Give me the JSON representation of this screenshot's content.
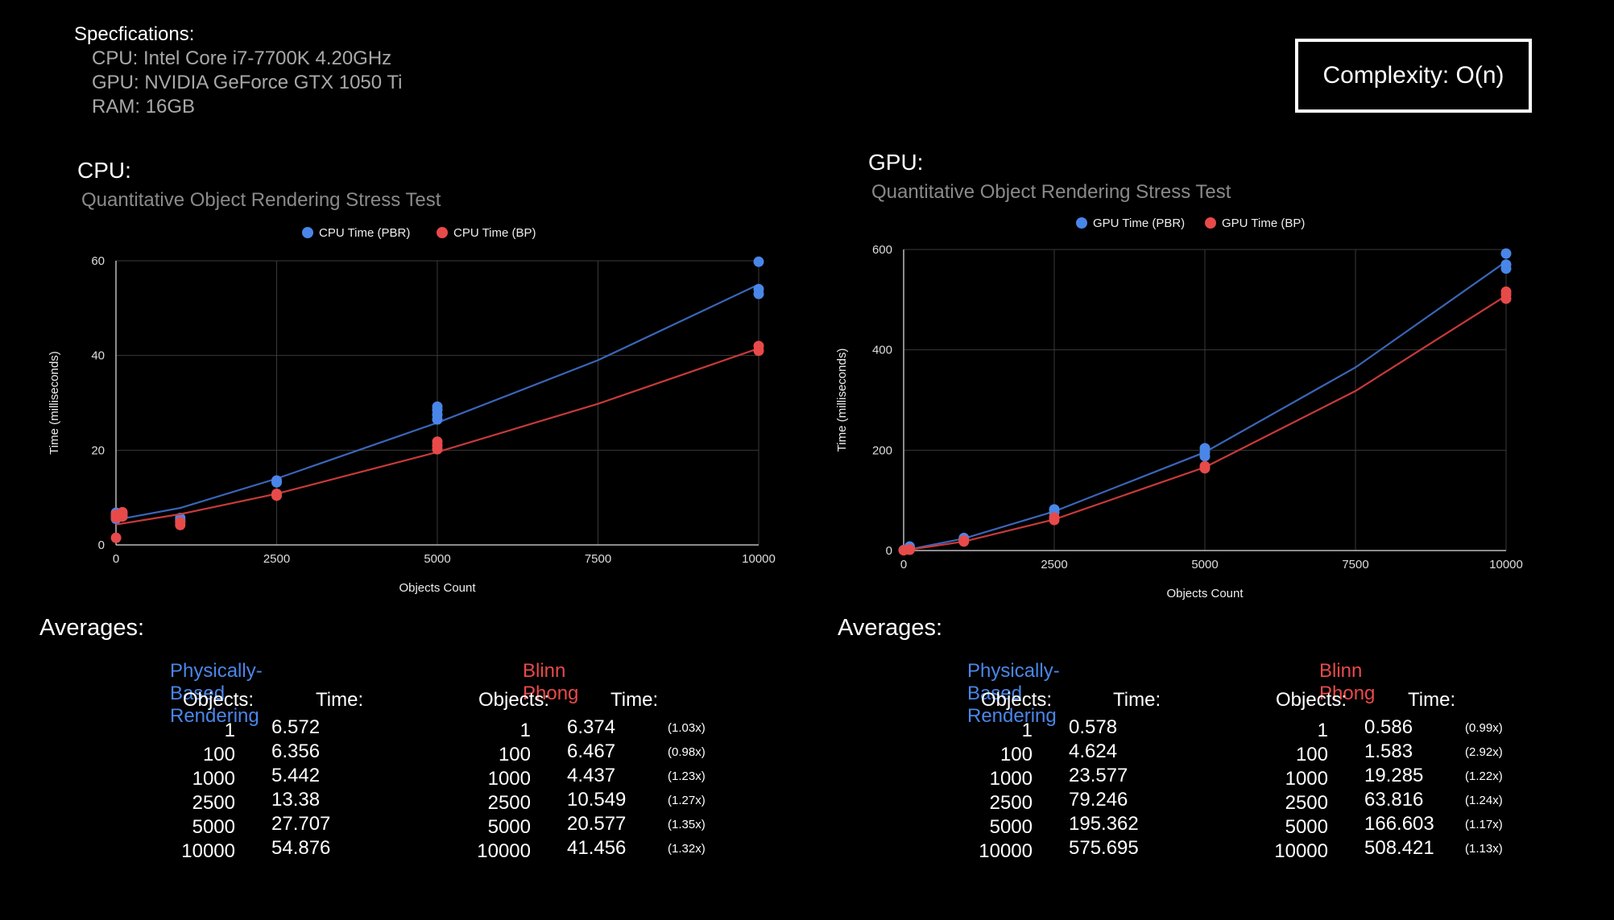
{
  "specs": {
    "heading": "Specfications:",
    "cpu": "CPU: Intel Core i7-7700K 4.20GHz",
    "gpu": "GPU: NVIDIA GeForce GTX 1050 Ti",
    "ram": "RAM: 16GB"
  },
  "complexity": "Complexity: O(n)",
  "colors": {
    "pbr": "#4a86e8",
    "bp": "#e84a4a",
    "pbr_line": "#3a66b8",
    "bp_line": "#c83a3a"
  },
  "cpu_panel": {
    "label": "CPU:",
    "averages_label": "Averages:"
  },
  "gpu_panel": {
    "label": "GPU:",
    "averages_label": "Averages:"
  },
  "chart_data": [
    {
      "type": "scatter",
      "title": "Quantitative Object Rendering Stress Test",
      "xlabel": "Objects Count",
      "ylabel": "Time (milliseconds)",
      "xlim": [
        0,
        10000
      ],
      "ylim": [
        0,
        60
      ],
      "xticks": [
        "0",
        "2500",
        "5000",
        "7500",
        "10000"
      ],
      "yticks": [
        "0",
        "20",
        "40",
        "60"
      ],
      "grid": true,
      "legend_position": "top",
      "series": [
        {
          "name": "CPU Time (PBR)",
          "points": [
            [
              1,
              5.5
            ],
            [
              1,
              6.2
            ],
            [
              1,
              6.8
            ],
            [
              100,
              6.0
            ],
            [
              100,
              6.5
            ],
            [
              1000,
              5.2
            ],
            [
              1000,
              5.7
            ],
            [
              2500,
              13.2
            ],
            [
              2500,
              13.6
            ],
            [
              5000,
              26.5
            ],
            [
              5000,
              27.5
            ],
            [
              5000,
              28.5
            ],
            [
              5000,
              29.2
            ],
            [
              10000,
              53.0
            ],
            [
              10000,
              54.0
            ],
            [
              10000,
              59.8
            ]
          ],
          "trend": [
            [
              0,
              5.3
            ],
            [
              1000,
              7.8
            ],
            [
              2500,
              14.0
            ],
            [
              5000,
              25.8
            ],
            [
              7500,
              39.0
            ],
            [
              10000,
              55.0
            ]
          ]
        },
        {
          "name": "CPU Time (BP)",
          "points": [
            [
              1,
              1.5
            ],
            [
              1,
              5.8
            ],
            [
              1,
              6.4
            ],
            [
              100,
              6.0
            ],
            [
              100,
              6.9
            ],
            [
              1000,
              4.2
            ],
            [
              1000,
              4.8
            ],
            [
              2500,
              10.4
            ],
            [
              2500,
              10.8
            ],
            [
              5000,
              20.2
            ],
            [
              5000,
              21.0
            ],
            [
              5000,
              21.8
            ],
            [
              10000,
              41.0
            ],
            [
              10000,
              42.0
            ]
          ],
          "trend": [
            [
              0,
              4.3
            ],
            [
              1000,
              6.5
            ],
            [
              2500,
              10.8
            ],
            [
              5000,
              19.6
            ],
            [
              7500,
              29.8
            ],
            [
              10000,
              41.5
            ]
          ]
        }
      ]
    },
    {
      "type": "scatter",
      "title": "Quantitative Object Rendering Stress Test",
      "xlabel": "Objects Count",
      "ylabel": "Time (milliseconds)",
      "xlim": [
        0,
        10000
      ],
      "ylim": [
        0,
        600
      ],
      "xticks": [
        "0",
        "2500",
        "5000",
        "7500",
        "10000"
      ],
      "yticks": [
        "0",
        "200",
        "400",
        "600"
      ],
      "grid": true,
      "legend_position": "top",
      "series": [
        {
          "name": "GPU Time (PBR)",
          "points": [
            [
              1,
              1
            ],
            [
              100,
              5
            ],
            [
              100,
              8
            ],
            [
              1000,
              23
            ],
            [
              1000,
              25
            ],
            [
              2500,
              76
            ],
            [
              2500,
              82
            ],
            [
              5000,
              188
            ],
            [
              5000,
              196
            ],
            [
              5000,
              204
            ],
            [
              10000,
              562
            ],
            [
              10000,
              570
            ],
            [
              10000,
              592
            ]
          ],
          "trend": [
            [
              0,
              0
            ],
            [
              1000,
              24
            ],
            [
              2500,
              78
            ],
            [
              5000,
              196
            ],
            [
              7500,
              365
            ],
            [
              10000,
              576
            ]
          ]
        },
        {
          "name": "GPU Time (BP)",
          "points": [
            [
              1,
              0.5
            ],
            [
              100,
              1.6
            ],
            [
              100,
              2.5
            ],
            [
              1000,
              18
            ],
            [
              1000,
              20
            ],
            [
              2500,
              61
            ],
            [
              2500,
              66
            ],
            [
              5000,
              164
            ],
            [
              5000,
              168
            ],
            [
              10000,
              502
            ],
            [
              10000,
              510
            ],
            [
              10000,
              516
            ]
          ],
          "trend": [
            [
              0,
              0
            ],
            [
              1000,
              18
            ],
            [
              2500,
              62
            ],
            [
              5000,
              166
            ],
            [
              7500,
              318
            ],
            [
              10000,
              508
            ]
          ]
        }
      ]
    }
  ],
  "averages": {
    "cpu": {
      "pbr_heading": "Physically-Based Rendering",
      "bp_heading": "Blinn Phong",
      "objects_col": "Objects:",
      "time_col": "Time:",
      "pbr_rows": [
        {
          "objects": "1",
          "time": "6.572"
        },
        {
          "objects": "100",
          "time": "6.356"
        },
        {
          "objects": "1000",
          "time": "5.442"
        },
        {
          "objects": "2500",
          "time": "13.38"
        },
        {
          "objects": "5000",
          "time": "27.707"
        },
        {
          "objects": "10000",
          "time": "54.876"
        }
      ],
      "bp_rows": [
        {
          "objects": "1",
          "time": "6.374",
          "ratio": "(1.03x)"
        },
        {
          "objects": "100",
          "time": "6.467",
          "ratio": "(0.98x)"
        },
        {
          "objects": "1000",
          "time": "4.437",
          "ratio": "(1.23x)"
        },
        {
          "objects": "2500",
          "time": "10.549",
          "ratio": "(1.27x)"
        },
        {
          "objects": "5000",
          "time": "20.577",
          "ratio": "(1.35x)"
        },
        {
          "objects": "10000",
          "time": "41.456",
          "ratio": "(1.32x)"
        }
      ]
    },
    "gpu": {
      "pbr_heading": "Physically-Based Rendering",
      "bp_heading": "Blinn Phong",
      "objects_col": "Objects:",
      "time_col": "Time:",
      "pbr_rows": [
        {
          "objects": "1",
          "time": "0.578"
        },
        {
          "objects": "100",
          "time": "4.624"
        },
        {
          "objects": "1000",
          "time": "23.577"
        },
        {
          "objects": "2500",
          "time": "79.246"
        },
        {
          "objects": "5000",
          "time": "195.362"
        },
        {
          "objects": "10000",
          "time": "575.695"
        }
      ],
      "bp_rows": [
        {
          "objects": "1",
          "time": "0.586",
          "ratio": "(0.99x)"
        },
        {
          "objects": "100",
          "time": "1.583",
          "ratio": "(2.92x)"
        },
        {
          "objects": "1000",
          "time": "19.285",
          "ratio": "(1.22x)"
        },
        {
          "objects": "2500",
          "time": "63.816",
          "ratio": "(1.24x)"
        },
        {
          "objects": "5000",
          "time": "166.603",
          "ratio": "(1.17x)"
        },
        {
          "objects": "10000",
          "time": "508.421",
          "ratio": "(1.13x)"
        }
      ]
    }
  }
}
